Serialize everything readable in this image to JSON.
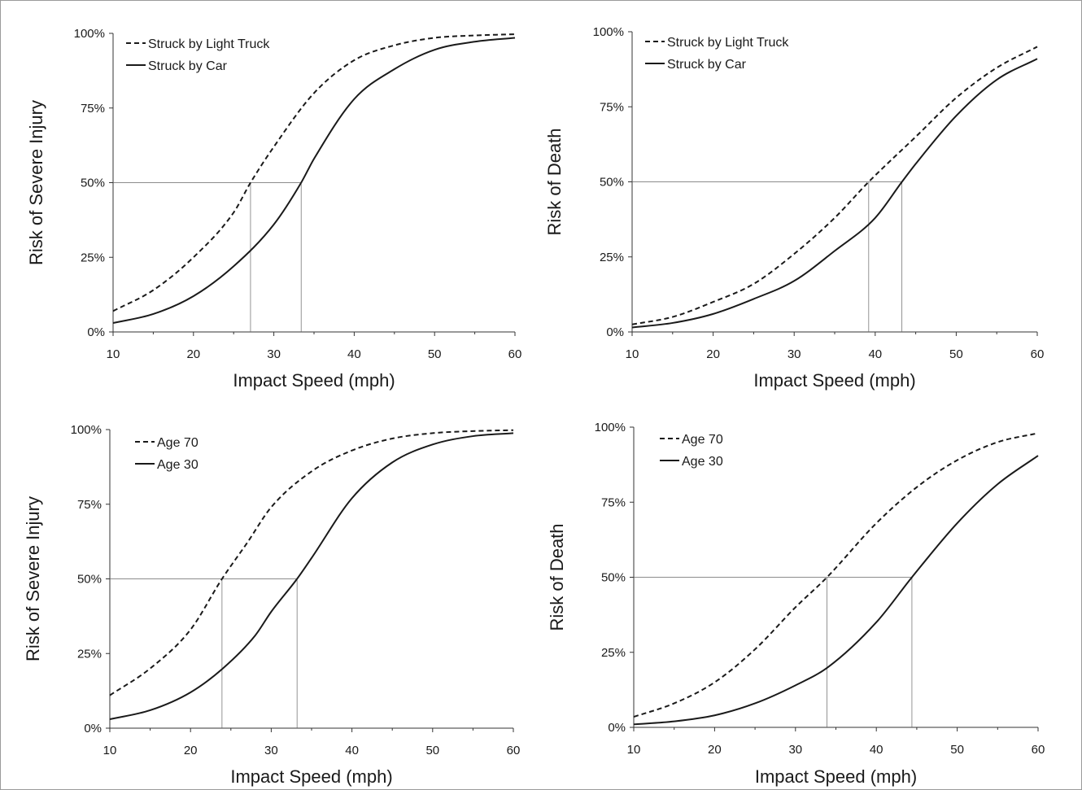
{
  "chart_data": [
    {
      "type": "line",
      "xlabel": "Impact Speed (mph)",
      "ylabel": "Risk of Severe Injury",
      "xlim": [
        10,
        60
      ],
      "ylim": [
        0,
        100
      ],
      "xticks": [
        "10",
        "20",
        "30",
        "40",
        "50",
        "60"
      ],
      "yticks": [
        "0%",
        "25%",
        "50%",
        "75%",
        "100%"
      ],
      "legend_position": "top-left",
      "grid": false,
      "reference_lines": [
        {
          "y": 50,
          "x": [
            27.1,
            33.4
          ]
        }
      ],
      "series": [
        {
          "name": "Struck by Light Truck",
          "style": "dashed",
          "x": [
            10,
            15,
            20,
            25,
            27.1,
            30,
            35,
            40,
            45,
            50,
            55,
            60
          ],
          "y": [
            7,
            14,
            25,
            40,
            50,
            62,
            80,
            91,
            96,
            98.5,
            99.3,
            99.7
          ]
        },
        {
          "name": "Struck by Car",
          "style": "solid",
          "x": [
            10,
            15,
            20,
            25,
            30,
            33.4,
            35,
            40,
            45,
            50,
            55,
            60
          ],
          "y": [
            3,
            6,
            12,
            22,
            36,
            50,
            58,
            78,
            88,
            94.5,
            97.2,
            98.5
          ]
        }
      ]
    },
    {
      "type": "line",
      "xlabel": "Impact Speed (mph)",
      "ylabel": "Risk of Death",
      "xlim": [
        10,
        60
      ],
      "ylim": [
        0,
        100
      ],
      "xticks": [
        "10",
        "20",
        "30",
        "40",
        "50",
        "60"
      ],
      "yticks": [
        "0%",
        "25%",
        "50%",
        "75%",
        "100%"
      ],
      "legend_position": "top-left",
      "grid": false,
      "reference_lines": [
        {
          "y": 50,
          "x": [
            39.2,
            43.3
          ]
        }
      ],
      "series": [
        {
          "name": "Struck by Light Truck",
          "style": "dashed",
          "x": [
            10,
            15,
            20,
            25,
            30,
            35,
            39.2,
            45,
            50,
            55,
            60
          ],
          "y": [
            2.5,
            5,
            10,
            16,
            26,
            38,
            50,
            65,
            78,
            88,
            95
          ]
        },
        {
          "name": "Struck by Car",
          "style": "solid",
          "x": [
            10,
            15,
            20,
            25,
            30,
            35,
            40,
            43.3,
            45,
            50,
            55,
            60
          ],
          "y": [
            1.5,
            3,
            6,
            11,
            17,
            27,
            38,
            50,
            56,
            72,
            84,
            91
          ]
        }
      ]
    },
    {
      "type": "line",
      "xlabel": "Impact Speed (mph)",
      "ylabel": "Risk of Severe Injury",
      "xlim": [
        10,
        60
      ],
      "ylim": [
        0,
        100
      ],
      "xticks": [
        "10",
        "20",
        "30",
        "40",
        "50",
        "60"
      ],
      "yticks": [
        "0%",
        "25%",
        "50%",
        "75%",
        "100%"
      ],
      "legend_position": "top-left",
      "grid": false,
      "reference_lines": [
        {
          "y": 50,
          "x": [
            23.9,
            33.2
          ]
        }
      ],
      "series": [
        {
          "name": "Age 70",
          "style": "dashed",
          "x": [
            10,
            15,
            20,
            23.9,
            27,
            30,
            35,
            40,
            45,
            50,
            55,
            60
          ],
          "y": [
            11,
            20,
            33,
            50,
            62,
            74,
            86,
            93,
            97,
            98.8,
            99.5,
            99.8
          ]
        },
        {
          "name": "Age 30",
          "style": "solid",
          "x": [
            10,
            15,
            20,
            24,
            28,
            30,
            33.2,
            35,
            40,
            45,
            50,
            55,
            60
          ],
          "y": [
            3,
            6,
            12,
            20,
            31,
            39,
            50,
            57,
            77,
            89,
            95,
            97.8,
            98.8
          ]
        }
      ]
    },
    {
      "type": "line",
      "xlabel": "Impact Speed (mph)",
      "ylabel": "Risk of Death",
      "xlim": [
        10,
        60
      ],
      "ylim": [
        0,
        100
      ],
      "xticks": [
        "10",
        "20",
        "30",
        "40",
        "50",
        "60"
      ],
      "yticks": [
        "0%",
        "25%",
        "50%",
        "75%",
        "100%"
      ],
      "legend_position": "top-left",
      "grid": false,
      "reference_lines": [
        {
          "y": 50,
          "x": [
            33.9,
            44.4
          ]
        }
      ],
      "series": [
        {
          "name": "Age 70",
          "style": "dashed",
          "x": [
            10,
            15,
            20,
            25,
            30,
            33.9,
            40,
            45,
            50,
            55,
            60
          ],
          "y": [
            3.5,
            8,
            15,
            26,
            40,
            50,
            68,
            80,
            89,
            95,
            98
          ]
        },
        {
          "name": "Age 30",
          "style": "solid",
          "x": [
            10,
            15,
            20,
            25,
            30,
            34,
            40,
            44.4,
            50,
            55,
            60
          ],
          "y": [
            1,
            2,
            4,
            8,
            14,
            20,
            35,
            50,
            68,
            81,
            90.5
          ]
        }
      ]
    }
  ]
}
